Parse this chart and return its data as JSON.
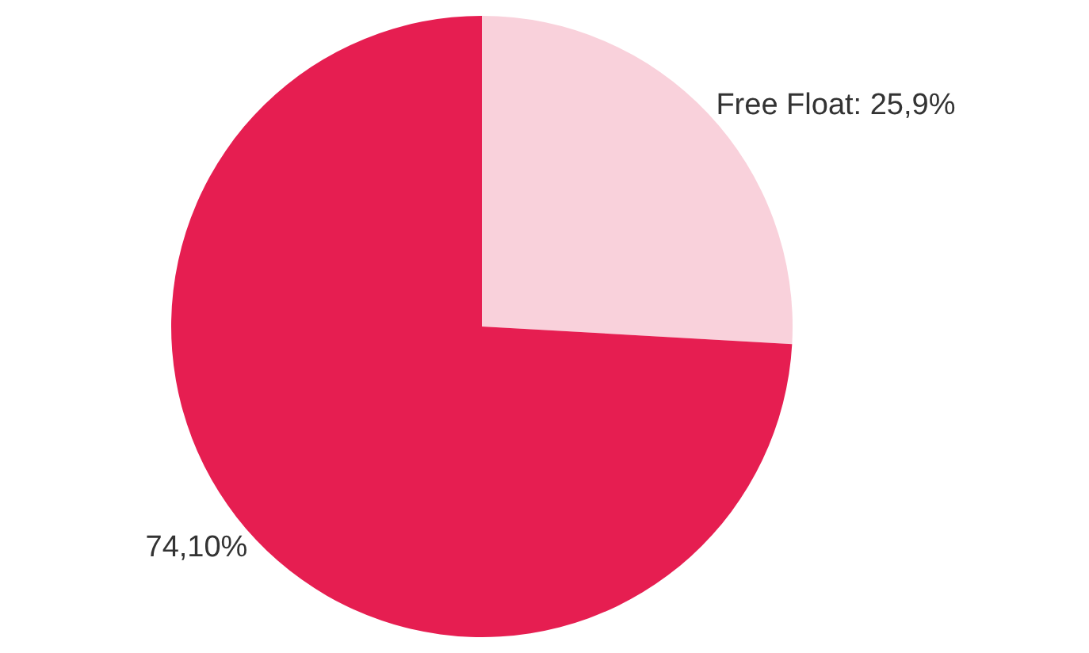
{
  "chart_data": {
    "type": "pie",
    "categories": [
      "Free Float",
      null
    ],
    "values": [
      25.9,
      74.1
    ],
    "value_labels": [
      "25,9%",
      "74,10%"
    ],
    "colors": [
      "#f9d1db",
      "#e61e51"
    ],
    "legend": false
  }
}
